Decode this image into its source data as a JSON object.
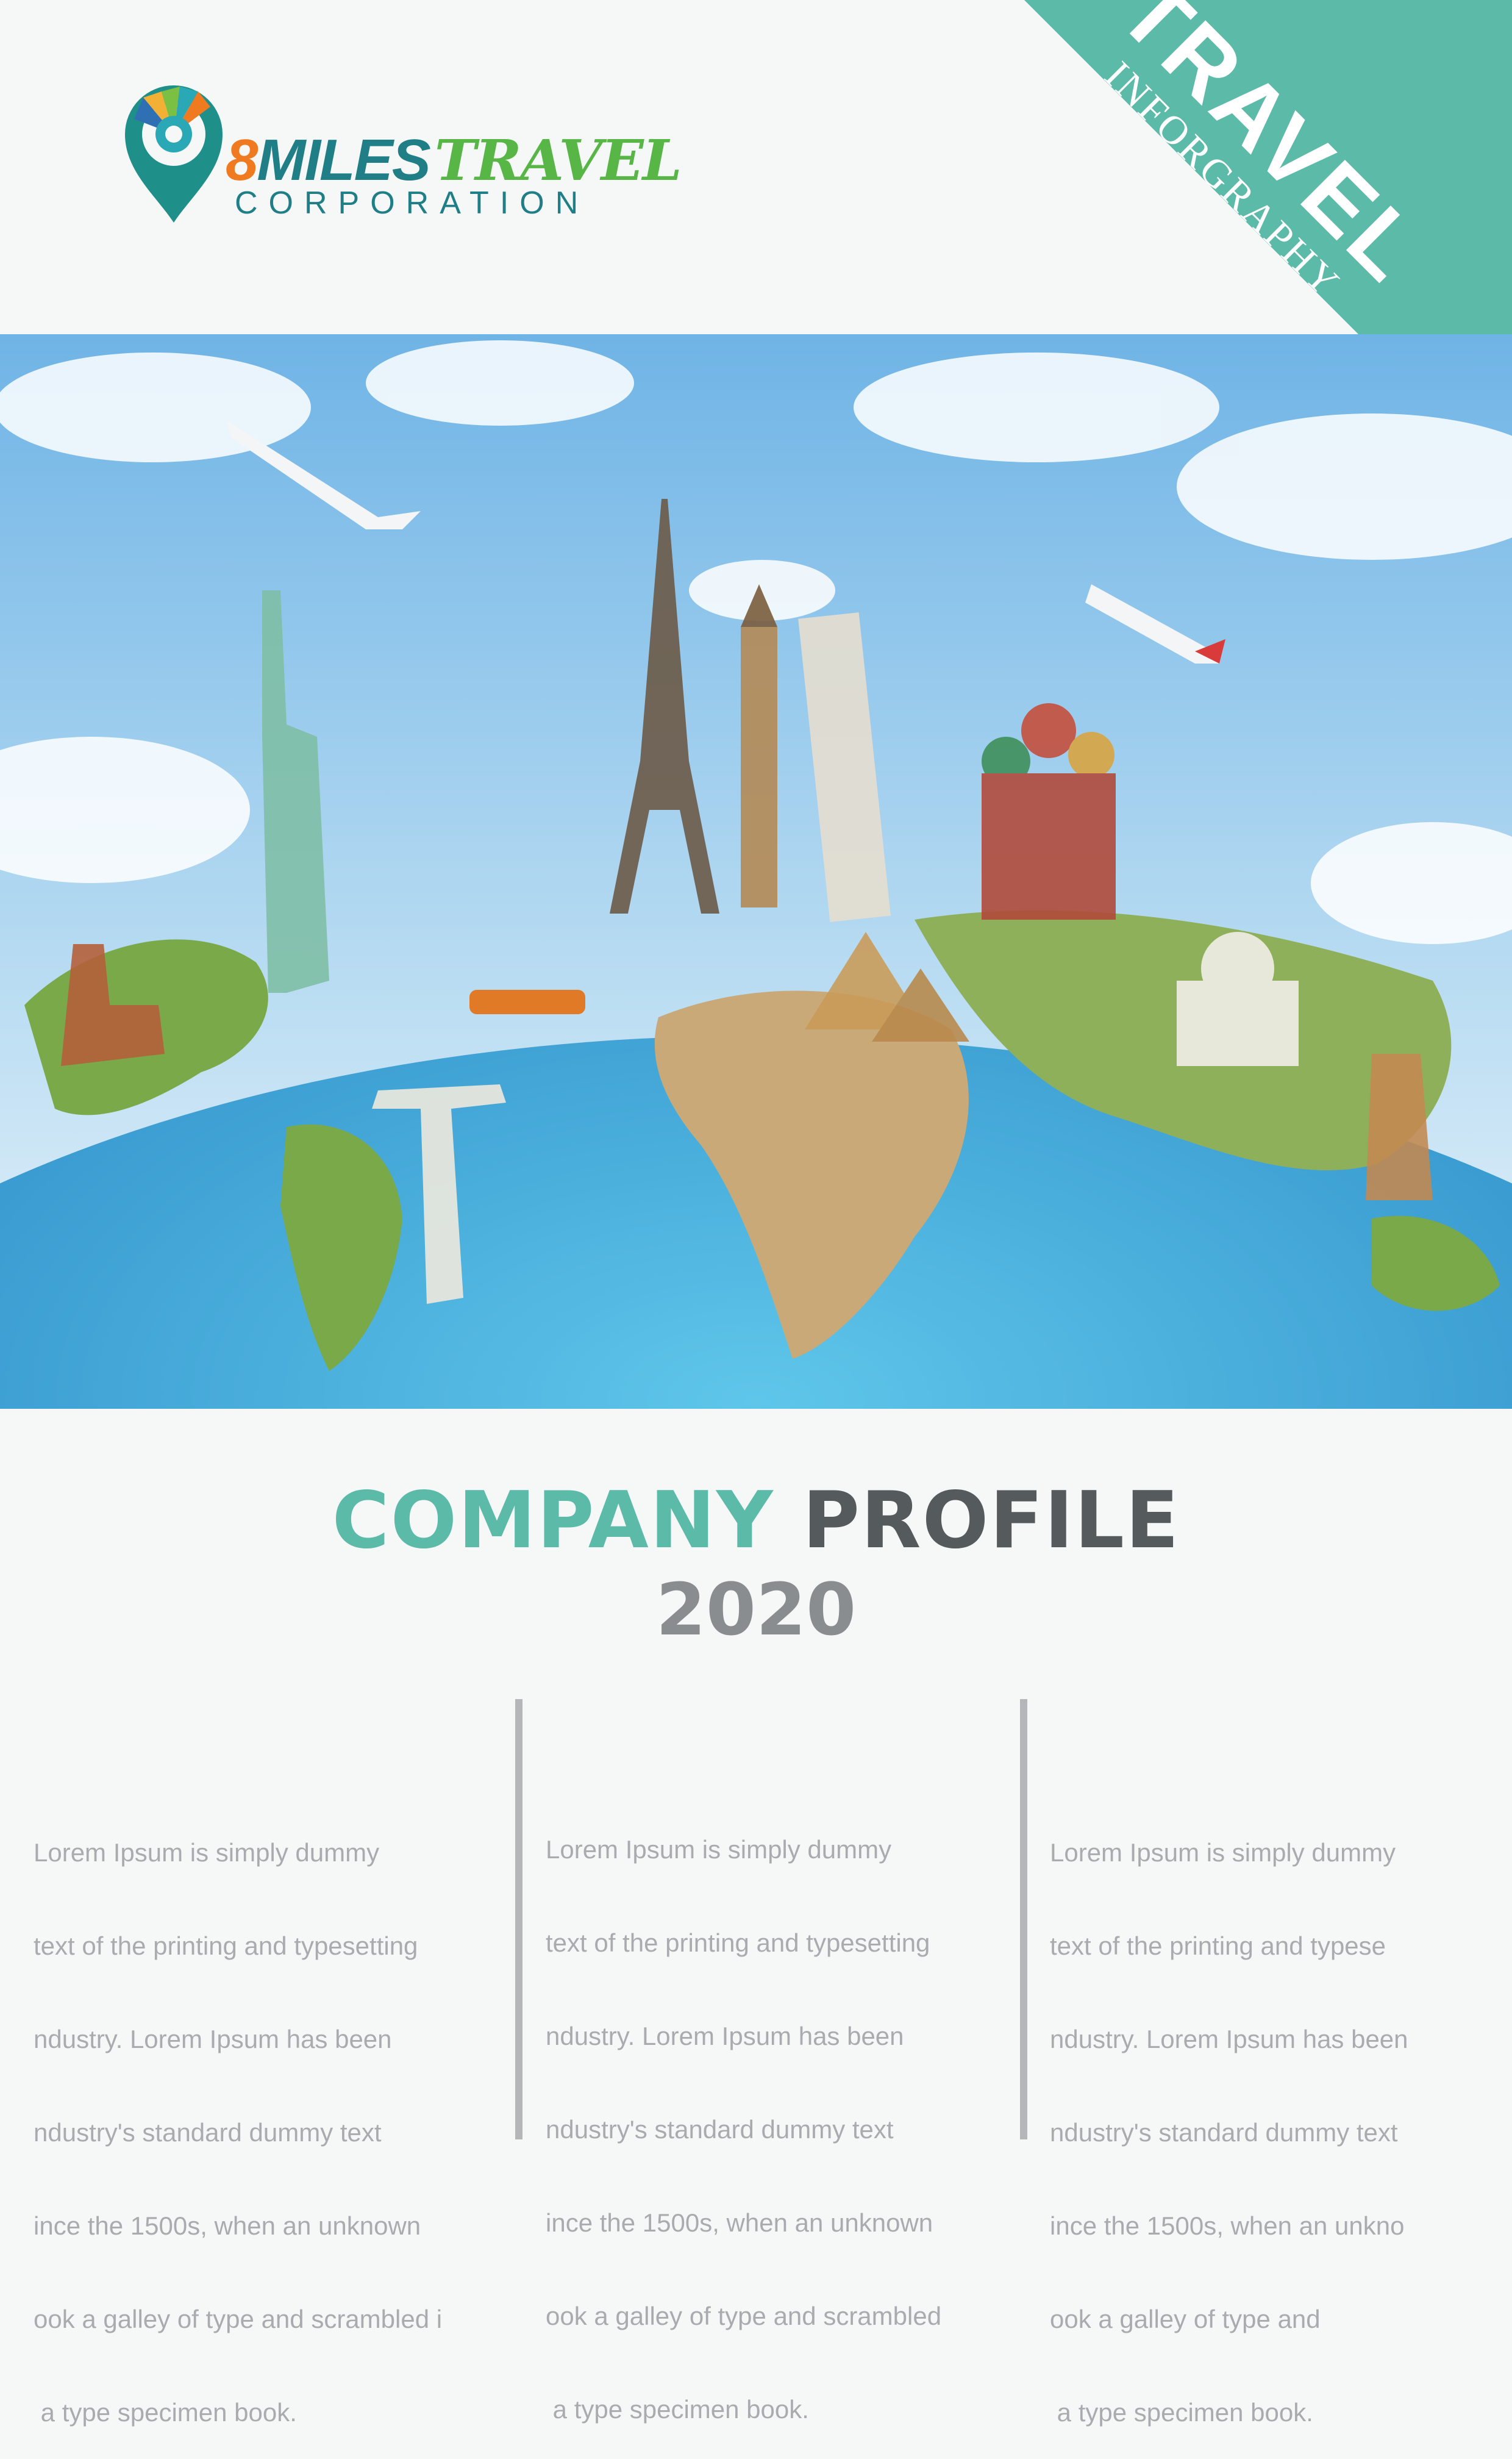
{
  "logo": {
    "number": "8",
    "word_miles": "MILES",
    "word_travel": "TRAVEL",
    "word_corporation": "CORPORATION"
  },
  "ribbon": {
    "title": "TRAVEL",
    "subtitle": "INFORGRAPHY",
    "color": "#5bbaa8"
  },
  "headline": {
    "word1": "COMPANY",
    "word2": "PROFILE",
    "year": "2020",
    "accent_color": "#5bbaa8"
  },
  "columns": [
    {
      "lines": [
        "Lorem Ipsum is simply dummy",
        "text of the printing and typesetting",
        "ndustry. Lorem Ipsum has been",
        "ndustry's standard dummy text",
        "ince the 1500s, when an unknown",
        "ook a galley of type and scrambled i",
        " a type specimen book."
      ]
    },
    {
      "lines": [
        "Lorem Ipsum is simply dummy",
        "text of the printing and typesetting",
        "ndustry. Lorem Ipsum has been",
        "ndustry's standard dummy text",
        "ince the 1500s, when an unknown",
        "ook a galley of type and scrambled",
        " a type specimen book."
      ]
    },
    {
      "lines": [
        "Lorem Ipsum is simply dummy",
        "text of the printing and typese",
        "ndustry. Lorem Ipsum has been",
        "ndustry's standard dummy text",
        "ince the 1500s, when an unkno",
        "ook a galley of type and",
        " a type specimen book."
      ]
    }
  ]
}
